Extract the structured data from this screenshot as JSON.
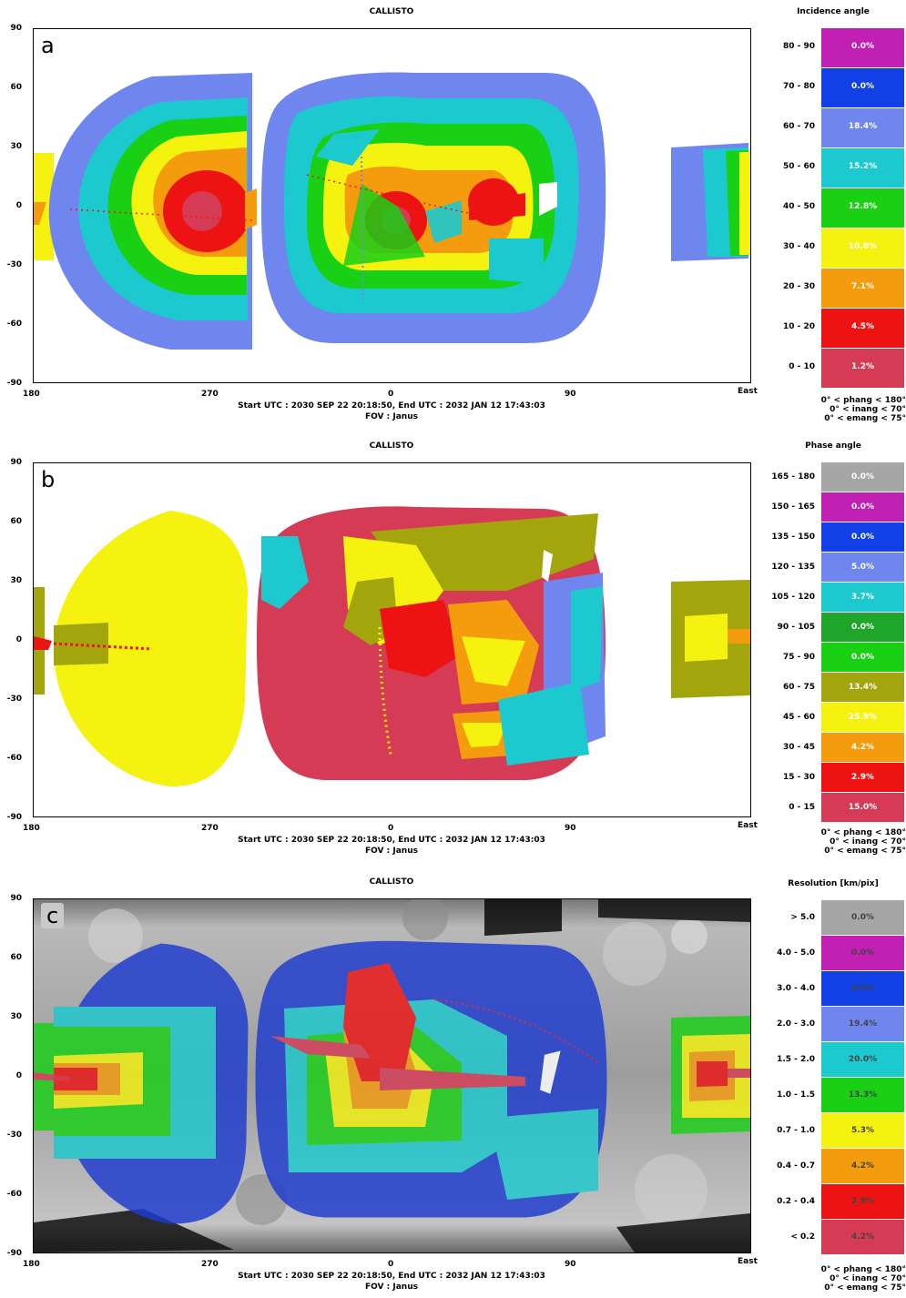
{
  "chart_data": [
    {
      "type": "heatmap",
      "panel_letter": "a",
      "title": "CALLISTO",
      "x_ticks": [
        "180",
        "270",
        "0",
        "90",
        "East"
      ],
      "y_ticks": [
        "90",
        "60",
        "30",
        "0",
        "-30",
        "-60",
        "-90"
      ],
      "xlim": [
        -180,
        180
      ],
      "ylim": [
        -90,
        90
      ],
      "info": {
        "times": "Start UTC : 2030 SEP 22 20:18:50,   End UTC : 2032 JAN 12 17:43:03",
        "fov": "FOV : Janus"
      },
      "legend": {
        "title": "Incidence angle",
        "bins": [
          {
            "range": "80 - 90",
            "value": "0.0%",
            "color": "#c21fb5"
          },
          {
            "range": "70 - 80",
            "value": "0.0%",
            "color": "#1040e6"
          },
          {
            "range": "60 - 70",
            "value": "18.4%",
            "color": "#6f86ee"
          },
          {
            "range": "50 - 60",
            "value": "15.2%",
            "color": "#1cc9cf"
          },
          {
            "range": "40 - 50",
            "value": "12.8%",
            "color": "#19d015"
          },
          {
            "range": "30 - 40",
            "value": "10.8%",
            "color": "#f4f20e"
          },
          {
            "range": "20 - 30",
            "value": "7.1%",
            "color": "#f59b0e"
          },
          {
            "range": "10 - 20",
            "value": "4.5%",
            "color": "#ee1313"
          },
          {
            "range": "0 - 10",
            "value": "1.2%",
            "color": "#d63b55"
          }
        ]
      },
      "constraints": [
        "0° < phang < 180°",
        "0° < inang < 70°",
        "0° < emang < 75°"
      ]
    },
    {
      "type": "heatmap",
      "panel_letter": "b",
      "title": "CALLISTO",
      "x_ticks": [
        "180",
        "270",
        "0",
        "90",
        "East"
      ],
      "y_ticks": [
        "90",
        "60",
        "30",
        "0",
        "-30",
        "-60",
        "-90"
      ],
      "xlim": [
        -180,
        180
      ],
      "ylim": [
        -90,
        90
      ],
      "info": {
        "times": "Start UTC : 2030 SEP 22 20:18:50,   End UTC : 2032 JAN 12 17:43:03",
        "fov": "FOV : Janus"
      },
      "legend": {
        "title": "Phase angle",
        "bins": [
          {
            "range": "165 - 180",
            "value": "0.0%",
            "color": "#a6a6a6"
          },
          {
            "range": "150 - 165",
            "value": "0.0%",
            "color": "#c21fb5"
          },
          {
            "range": "135 - 150",
            "value": "0.0%",
            "color": "#1040e6"
          },
          {
            "range": "120 - 135",
            "value": "5.0%",
            "color": "#6f86ee"
          },
          {
            "range": "105 - 120",
            "value": "3.7%",
            "color": "#1cc9cf"
          },
          {
            "range": "90 - 105",
            "value": "0.0%",
            "color": "#1fa52a"
          },
          {
            "range": "75 - 90",
            "value": "0.0%",
            "color": "#19d015"
          },
          {
            "range": "60 - 75",
            "value": "13.4%",
            "color": "#a3a50c"
          },
          {
            "range": "45 - 60",
            "value": "25.9%",
            "color": "#f4f20e"
          },
          {
            "range": "30 - 45",
            "value": "4.2%",
            "color": "#f59b0e"
          },
          {
            "range": "15 - 30",
            "value": "2.9%",
            "color": "#ee1313"
          },
          {
            "range": "0 - 15",
            "value": "15.0%",
            "color": "#d63b55"
          }
        ]
      },
      "constraints": [
        "0° < phang < 180°",
        "0° < inang < 70°",
        "0° < emang < 75°"
      ]
    },
    {
      "type": "heatmap",
      "panel_letter": "c",
      "title": "CALLISTO",
      "x_ticks": [
        "180",
        "270",
        "0",
        "90",
        "East"
      ],
      "y_ticks": [
        "90",
        "60",
        "30",
        "0",
        "-30",
        "-60",
        "-90"
      ],
      "xlim": [
        -180,
        180
      ],
      "ylim": [
        -90,
        90
      ],
      "info": {
        "times": "Start UTC : 2030 SEP 22 20:18:50,   End UTC : 2032 JAN 12 17:43:03",
        "fov": "FOV : Janus"
      },
      "legend": {
        "title": "Resolution [km/pix]",
        "bins": [
          {
            "range": "> 5.0",
            "value": "0.0%",
            "color": "#a6a6a6"
          },
          {
            "range": "4.0 - 5.0",
            "value": "0.0%",
            "color": "#c21fb5"
          },
          {
            "range": "3.0 - 4.0",
            "value": "0.0%",
            "color": "#1040e6"
          },
          {
            "range": "2.0 - 3.0",
            "value": "19.4%",
            "color": "#6f86ee"
          },
          {
            "range": "1.5 - 2.0",
            "value": "20.0%",
            "color": "#1cc9cf"
          },
          {
            "range": "1.0 - 1.5",
            "value": "13.3%",
            "color": "#19d015"
          },
          {
            "range": "0.7 - 1.0",
            "value": "5.3%",
            "color": "#f4f20e"
          },
          {
            "range": "0.4 - 0.7",
            "value": "4.2%",
            "color": "#f59b0e"
          },
          {
            "range": "0.2 - 0.4",
            "value": "2.9%",
            "color": "#ee1313"
          },
          {
            "range": "< 0.2",
            "value": "4.2%",
            "color": "#d63b55"
          }
        ]
      },
      "constraints": [
        "0° < phang < 180°",
        "0° < inang < 70°",
        "0° < emang < 75°"
      ]
    }
  ]
}
